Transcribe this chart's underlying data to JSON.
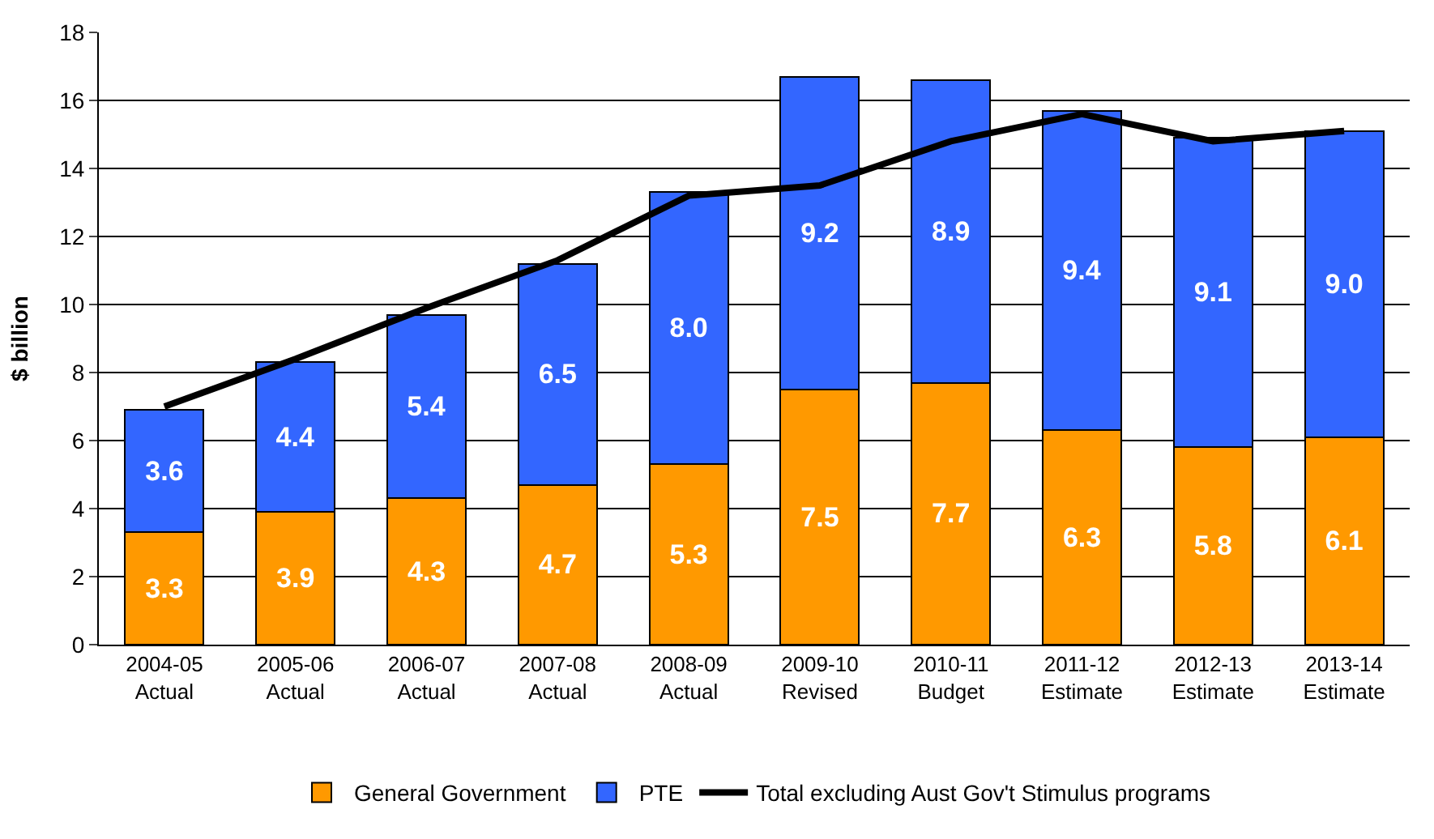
{
  "chart_data": {
    "type": "bar",
    "stacked": true,
    "ylabel": "$ billion",
    "categories": [
      "2004-05\nActual",
      "2005-06\nActual",
      "2006-07\nActual",
      "2007-08\nActual",
      "2008-09\nActual",
      "2009-10\nRevised",
      "2010-11\nBudget",
      "2011-12\nEstimate",
      "2012-13\nEstimate",
      "2013-14\nEstimate"
    ],
    "series": [
      {
        "name": "General Government",
        "color": "#ff9900",
        "values": [
          3.3,
          3.9,
          4.3,
          4.7,
          5.3,
          7.5,
          7.7,
          6.3,
          5.8,
          6.1
        ],
        "value_labels": [
          "3.3",
          "3.9",
          "4.3",
          "4.7",
          "5.3",
          "7.5",
          "7.7",
          "6.3",
          "5.8",
          "6.1"
        ]
      },
      {
        "name": "PTE",
        "color": "#3366ff",
        "values": [
          3.6,
          4.4,
          5.4,
          6.5,
          8.0,
          9.2,
          8.9,
          9.4,
          9.1,
          9.0
        ],
        "value_labels": [
          "3.6",
          "4.4",
          "5.4",
          "6.5",
          "8.0",
          "9.2",
          "8.9",
          "9.4",
          "9.1",
          "9.0"
        ]
      },
      {
        "name": "Total excluding Aust Gov't Stimulus programs",
        "type": "line",
        "color": "#000000",
        "values": [
          7.0,
          8.4,
          9.9,
          11.3,
          13.2,
          13.5,
          14.8,
          15.6,
          14.8,
          15.1
        ]
      }
    ],
    "ylim": [
      0,
      18
    ],
    "yticks": [
      0,
      2,
      4,
      6,
      8,
      10,
      12,
      14,
      16,
      18
    ],
    "grid": "y",
    "legend": "bottom",
    "marker": "none"
  }
}
